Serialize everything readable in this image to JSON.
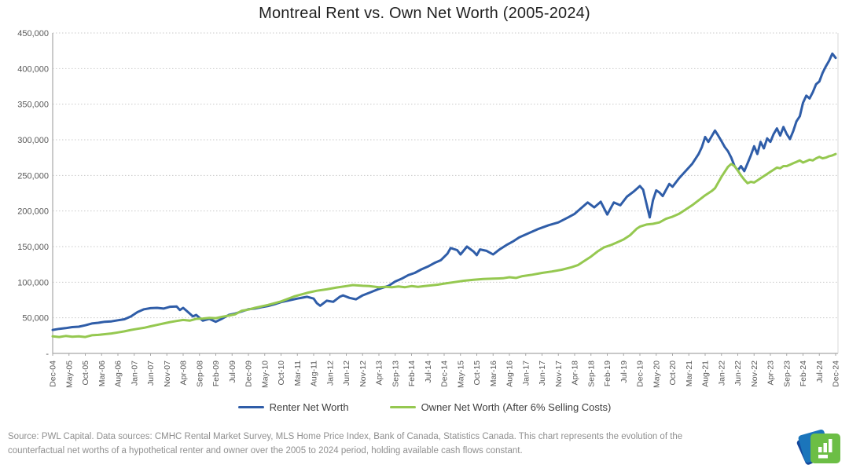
{
  "page": {
    "title": "Montreal Rent vs. Own Net Worth (2005-2024)"
  },
  "legend": {
    "items": [
      {
        "label": "Renter Net Worth",
        "color": "#2F5DA8"
      },
      {
        "label": "Owner Net Worth (After 6% Selling Costs)",
        "color": "#95C850"
      }
    ]
  },
  "footer": {
    "source_text": "Source: PWL Capital. Data sources: CMHC Rental Market Survey, MLS Home Price Index, Bank of Canada, Statistics Canada. This chart represents the evolution of the counterfactual net worths of a hypothetical renter and owner over the 2005 to 2024 period, holding available cash flows constant."
  },
  "logo": {
    "name": "pwl-capital-logo",
    "green": "#6CBE45",
    "blue": "#1B75BB",
    "dark_blue": "#15489C"
  },
  "chart_data": {
    "type": "line",
    "title": "Montreal Rent vs. Own Net Worth (2005-2024)",
    "xlabel": "",
    "ylabel": "",
    "ylim": [
      0,
      450000
    ],
    "grid": "horizontal-dotted",
    "legend_position": "bottom",
    "y_ticks": [
      {
        "value": 0,
        "label": "-"
      },
      {
        "value": 50000,
        "label": "50,000"
      },
      {
        "value": 100000,
        "label": "100,000"
      },
      {
        "value": 150000,
        "label": "150,000"
      },
      {
        "value": 200000,
        "label": "200,000"
      },
      {
        "value": 250000,
        "label": "250,000"
      },
      {
        "value": 300000,
        "label": "300,000"
      },
      {
        "value": 350000,
        "label": "350,000"
      },
      {
        "value": 400000,
        "label": "400,000"
      },
      {
        "value": 450000,
        "label": "450,000"
      }
    ],
    "x_tick_interval_months": 5,
    "x_tick_labels": [
      "Dec-04",
      "May-05",
      "Oct-05",
      "Mar-06",
      "Aug-06",
      "Jan-07",
      "Jun-07",
      "Nov-07",
      "Apr-08",
      "Sep-08",
      "Feb-09",
      "Jul-09",
      "Dec-09",
      "May-10",
      "Oct-10",
      "Mar-11",
      "Aug-11",
      "Jan-12",
      "Jun-12",
      "Nov-12",
      "Apr-13",
      "Sep-13",
      "Feb-14",
      "Jul-14",
      "Dec-14",
      "May-15",
      "Oct-15",
      "Mar-16",
      "Aug-16",
      "Jan-17",
      "Jun-17",
      "Nov-17",
      "Apr-18",
      "Sep-18",
      "Feb-19",
      "Jul-19",
      "Dec-19",
      "May-20",
      "Oct-20",
      "Mar-21",
      "Aug-21",
      "Jan-22",
      "Jun-22",
      "Nov-22",
      "Apr-23",
      "Sep-23",
      "Feb-24",
      "Jul-24",
      "Dec-24"
    ],
    "series": [
      {
        "name": "Renter Net Worth",
        "color": "#2F5DA8",
        "points": [
          [
            0,
            33000
          ],
          [
            2,
            34500
          ],
          [
            4,
            35500
          ],
          [
            6,
            37000
          ],
          [
            8,
            37500
          ],
          [
            10,
            39500
          ],
          [
            12,
            42000
          ],
          [
            14,
            43000
          ],
          [
            16,
            44500
          ],
          [
            18,
            45000
          ],
          [
            20,
            46500
          ],
          [
            22,
            48000
          ],
          [
            24,
            52000
          ],
          [
            26,
            58000
          ],
          [
            28,
            62000
          ],
          [
            30,
            63500
          ],
          [
            32,
            64000
          ],
          [
            34,
            63000
          ],
          [
            36,
            65500
          ],
          [
            38,
            66000
          ],
          [
            39,
            61000
          ],
          [
            40,
            64000
          ],
          [
            41,
            60000
          ],
          [
            43,
            52000
          ],
          [
            44,
            54000
          ],
          [
            46,
            46000
          ],
          [
            48,
            48500
          ],
          [
            50,
            44500
          ],
          [
            52,
            49000
          ],
          [
            54,
            54000
          ],
          [
            56,
            56000
          ],
          [
            58,
            59000
          ],
          [
            60,
            62000
          ],
          [
            62,
            63000
          ],
          [
            64,
            65000
          ],
          [
            66,
            66500
          ],
          [
            68,
            69000
          ],
          [
            70,
            72000
          ],
          [
            72,
            74000
          ],
          [
            75,
            77000
          ],
          [
            78,
            79500
          ],
          [
            80,
            77000
          ],
          [
            81,
            70500
          ],
          [
            82,
            67000
          ],
          [
            84,
            74000
          ],
          [
            86,
            72500
          ],
          [
            88,
            79500
          ],
          [
            89,
            81500
          ],
          [
            91,
            78000
          ],
          [
            93,
            76000
          ],
          [
            95,
            81500
          ],
          [
            97,
            85000
          ],
          [
            100,
            90500
          ],
          [
            103,
            95000
          ],
          [
            105,
            101000
          ],
          [
            107,
            105000
          ],
          [
            109,
            110000
          ],
          [
            111,
            113000
          ],
          [
            113,
            118000
          ],
          [
            115,
            122000
          ],
          [
            117,
            127000
          ],
          [
            119,
            131000
          ],
          [
            121,
            140000
          ],
          [
            122,
            148000
          ],
          [
            124,
            145000
          ],
          [
            125,
            139000
          ],
          [
            127,
            150000
          ],
          [
            129,
            143000
          ],
          [
            130,
            138000
          ],
          [
            131,
            146000
          ],
          [
            133,
            144000
          ],
          [
            135,
            139000
          ],
          [
            137,
            146000
          ],
          [
            139,
            152000
          ],
          [
            141,
            157000
          ],
          [
            143,
            163000
          ],
          [
            146,
            169000
          ],
          [
            149,
            175000
          ],
          [
            152,
            180000
          ],
          [
            155,
            184000
          ],
          [
            158,
            191000
          ],
          [
            160,
            196000
          ],
          [
            162,
            204000
          ],
          [
            164,
            212000
          ],
          [
            166,
            205000
          ],
          [
            168,
            213000
          ],
          [
            170,
            195000
          ],
          [
            172,
            212000
          ],
          [
            174,
            208000
          ],
          [
            176,
            220000
          ],
          [
            178,
            227000
          ],
          [
            180,
            235000
          ],
          [
            181,
            230000
          ],
          [
            183,
            191000
          ],
          [
            184,
            215000
          ],
          [
            185,
            229000
          ],
          [
            186,
            226000
          ],
          [
            187,
            221000
          ],
          [
            189,
            238000
          ],
          [
            190,
            234000
          ],
          [
            192,
            246000
          ],
          [
            194,
            256000
          ],
          [
            196,
            266000
          ],
          [
            198,
            280000
          ],
          [
            199,
            290000
          ],
          [
            200,
            304000
          ],
          [
            201,
            297000
          ],
          [
            202,
            305000
          ],
          [
            203,
            313000
          ],
          [
            204,
            306000
          ],
          [
            205,
            298000
          ],
          [
            206,
            290000
          ],
          [
            207,
            284000
          ],
          [
            208,
            275000
          ],
          [
            209,
            263000
          ],
          [
            210,
            257000
          ],
          [
            211,
            263000
          ],
          [
            212,
            256000
          ],
          [
            213,
            267000
          ],
          [
            214,
            278000
          ],
          [
            215,
            291000
          ],
          [
            216,
            280000
          ],
          [
            217,
            297000
          ],
          [
            218,
            288000
          ],
          [
            219,
            302000
          ],
          [
            220,
            297000
          ],
          [
            221,
            308000
          ],
          [
            222,
            316000
          ],
          [
            223,
            306000
          ],
          [
            224,
            318000
          ],
          [
            225,
            308000
          ],
          [
            226,
            301000
          ],
          [
            227,
            312000
          ],
          [
            228,
            326000
          ],
          [
            229,
            333000
          ],
          [
            230,
            352000
          ],
          [
            231,
            362000
          ],
          [
            232,
            358000
          ],
          [
            233,
            367000
          ],
          [
            234,
            378000
          ],
          [
            235,
            382000
          ],
          [
            236,
            394000
          ],
          [
            237,
            403000
          ],
          [
            238,
            411000
          ],
          [
            239,
            421000
          ],
          [
            240,
            415000
          ]
        ]
      },
      {
        "name": "Owner Net Worth (After 6% Selling Costs)",
        "color": "#95C850",
        "points": [
          [
            0,
            24000
          ],
          [
            2,
            23000
          ],
          [
            4,
            24500
          ],
          [
            6,
            23500
          ],
          [
            8,
            24000
          ],
          [
            10,
            23000
          ],
          [
            12,
            25500
          ],
          [
            14,
            26000
          ],
          [
            16,
            27000
          ],
          [
            18,
            28000
          ],
          [
            20,
            29500
          ],
          [
            22,
            31000
          ],
          [
            24,
            33000
          ],
          [
            26,
            34500
          ],
          [
            28,
            36000
          ],
          [
            30,
            38000
          ],
          [
            32,
            40000
          ],
          [
            34,
            42000
          ],
          [
            36,
            44000
          ],
          [
            38,
            45500
          ],
          [
            40,
            47000
          ],
          [
            42,
            46000
          ],
          [
            44,
            48500
          ],
          [
            46,
            49000
          ],
          [
            48,
            50000
          ],
          [
            50,
            49500
          ],
          [
            52,
            51500
          ],
          [
            54,
            53000
          ],
          [
            56,
            55000
          ],
          [
            58,
            60000
          ],
          [
            60,
            61500
          ],
          [
            62,
            64000
          ],
          [
            66,
            68000
          ],
          [
            70,
            73000
          ],
          [
            74,
            80000
          ],
          [
            78,
            85000
          ],
          [
            81,
            88000
          ],
          [
            84,
            90000
          ],
          [
            87,
            92500
          ],
          [
            90,
            94500
          ],
          [
            92,
            96000
          ],
          [
            95,
            95000
          ],
          [
            97,
            94500
          ],
          [
            100,
            93000
          ],
          [
            102,
            93500
          ],
          [
            104,
            93000
          ],
          [
            106,
            94000
          ],
          [
            108,
            93000
          ],
          [
            110,
            94500
          ],
          [
            112,
            93500
          ],
          [
            114,
            94500
          ],
          [
            116,
            95500
          ],
          [
            118,
            96500
          ],
          [
            120,
            98000
          ],
          [
            123,
            100000
          ],
          [
            126,
            102000
          ],
          [
            129,
            103500
          ],
          [
            132,
            104500
          ],
          [
            135,
            105000
          ],
          [
            138,
            105500
          ],
          [
            140,
            107000
          ],
          [
            142,
            106000
          ],
          [
            144,
            108500
          ],
          [
            147,
            110500
          ],
          [
            150,
            113000
          ],
          [
            153,
            115000
          ],
          [
            156,
            117500
          ],
          [
            159,
            121000
          ],
          [
            161,
            124000
          ],
          [
            163,
            130000
          ],
          [
            165,
            136000
          ],
          [
            167,
            143000
          ],
          [
            169,
            149000
          ],
          [
            171,
            152000
          ],
          [
            173,
            156000
          ],
          [
            175,
            160000
          ],
          [
            177,
            166000
          ],
          [
            179,
            175000
          ],
          [
            180,
            178000
          ],
          [
            182,
            181000
          ],
          [
            184,
            182000
          ],
          [
            186,
            184000
          ],
          [
            188,
            189000
          ],
          [
            190,
            192000
          ],
          [
            192,
            196000
          ],
          [
            194,
            202000
          ],
          [
            196,
            208000
          ],
          [
            198,
            215000
          ],
          [
            200,
            222000
          ],
          [
            202,
            228000
          ],
          [
            203,
            232000
          ],
          [
            205,
            248000
          ],
          [
            207,
            262000
          ],
          [
            208,
            266000
          ],
          [
            209,
            263000
          ],
          [
            210,
            257000
          ],
          [
            211,
            250000
          ],
          [
            212,
            244000
          ],
          [
            213,
            239000
          ],
          [
            214,
            241000
          ],
          [
            215,
            240000
          ],
          [
            216,
            243000
          ],
          [
            217,
            246000
          ],
          [
            218,
            249000
          ],
          [
            219,
            252000
          ],
          [
            220,
            255000
          ],
          [
            221,
            258000
          ],
          [
            222,
            261000
          ],
          [
            223,
            260000
          ],
          [
            224,
            263000
          ],
          [
            225,
            263000
          ],
          [
            226,
            265000
          ],
          [
            227,
            267000
          ],
          [
            228,
            269000
          ],
          [
            229,
            271000
          ],
          [
            230,
            268000
          ],
          [
            231,
            270000
          ],
          [
            232,
            272000
          ],
          [
            233,
            271000
          ],
          [
            234,
            274000
          ],
          [
            235,
            276000
          ],
          [
            236,
            274000
          ],
          [
            237,
            275000
          ],
          [
            238,
            277000
          ],
          [
            239,
            278000
          ],
          [
            240,
            280000
          ]
        ]
      }
    ],
    "axis_colors": {
      "axis_line": "#a6a6a6",
      "grid_line": "#c9c9c9",
      "tick_label": "#595959",
      "right_border": "#d9d9d9"
    }
  }
}
